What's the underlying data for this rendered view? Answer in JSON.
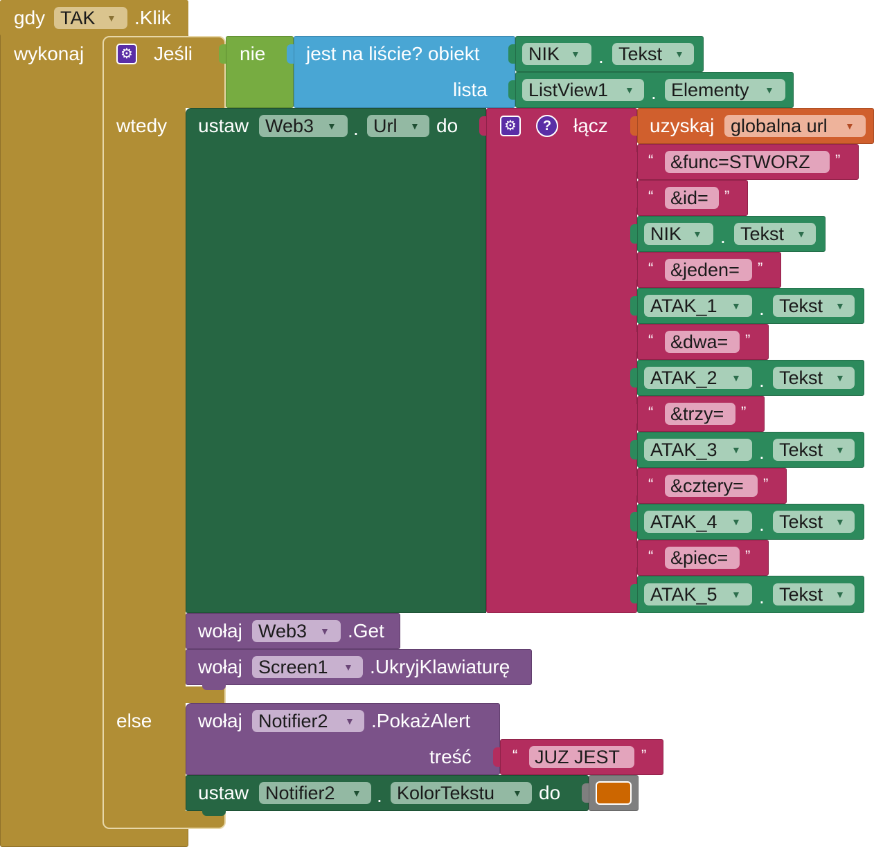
{
  "colors": {
    "control": "#b18e35",
    "logic": "#77ac41",
    "list": "#49a6d4",
    "component": "#2c8a5c",
    "setter": "#266643",
    "text": "#b32d5e",
    "variable": "#d05f2d",
    "method": "#7b5289",
    "color_swatch": "#cc6600"
  },
  "event": {
    "when": "gdy",
    "component": "TAK",
    "event_name": ".Klik",
    "do": "wykonaj"
  },
  "if_block": {
    "if_label": "Jeśli",
    "then_label": "wtedy",
    "else_label": "else",
    "condition": {
      "not": "nie",
      "is_in_list": "jest na liście? obiekt",
      "list_label": "lista",
      "object": {
        "component": "NIK",
        "property": "Tekst"
      },
      "list": {
        "component": "ListView1",
        "property": "Elementy"
      }
    }
  },
  "then_set": {
    "set": "ustaw",
    "component": "Web3",
    "property": "Url",
    "to": "do",
    "join_label": "łącz",
    "get_label": "uzyskaj",
    "variable": "globalna url",
    "items": [
      {
        "kind": "text",
        "value": "&func=STWORZ"
      },
      {
        "kind": "text",
        "value": "&id="
      },
      {
        "kind": "prop",
        "component": "NIK",
        "property": "Tekst"
      },
      {
        "kind": "text",
        "value": "&jeden="
      },
      {
        "kind": "prop",
        "component": "ATAK_1",
        "property": "Tekst"
      },
      {
        "kind": "text",
        "value": "&dwa="
      },
      {
        "kind": "prop",
        "component": "ATAK_2",
        "property": "Tekst"
      },
      {
        "kind": "text",
        "value": "&trzy="
      },
      {
        "kind": "prop",
        "component": "ATAK_3",
        "property": "Tekst"
      },
      {
        "kind": "text",
        "value": "&cztery="
      },
      {
        "kind": "prop",
        "component": "ATAK_4",
        "property": "Tekst"
      },
      {
        "kind": "text",
        "value": "&piec="
      },
      {
        "kind": "prop",
        "component": "ATAK_5",
        "property": "Tekst"
      }
    ]
  },
  "then_calls": [
    {
      "call": "wołaj",
      "component": "Web3",
      "method": ".Get"
    },
    {
      "call": "wołaj",
      "component": "Screen1",
      "method": ".UkryjKlawiaturę"
    }
  ],
  "else_call": {
    "call": "wołaj",
    "component": "Notifier2",
    "method": ".PokażAlert",
    "arg_label": "treść",
    "message": "JUZ JEST"
  },
  "else_set": {
    "set": "ustaw",
    "component": "Notifier2",
    "property": "KolorTekstu",
    "to": "do"
  },
  "glyphs": {
    "open_quote": "“",
    "close_quote": "”",
    "dot": ".",
    "arrow": "▼",
    "gear": "⚙",
    "help": "?"
  }
}
